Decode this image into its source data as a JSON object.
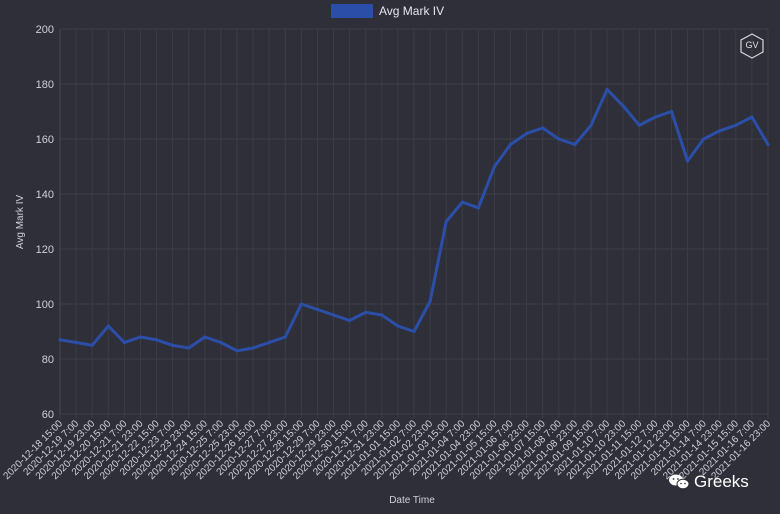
{
  "chart_data": {
    "type": "line",
    "legend": {
      "label": "Avg Mark IV",
      "position": "top-center"
    },
    "xlabel": "Date Time",
    "ylabel": "Avg Mark IV",
    "ylim": [
      60,
      200
    ],
    "yticks": [
      60,
      80,
      100,
      120,
      140,
      160,
      180,
      200
    ],
    "grid": true,
    "series_color": "#2b4fa8",
    "x": [
      "2020-12-18 15:00",
      "2020-12-19 7:00",
      "2020-12-19 23:00",
      "2020-12-20 15:00",
      "2020-12-21 7:00",
      "2020-12-21 23:00",
      "2020-12-22 15:00",
      "2020-12-23 7:00",
      "2020-12-23 23:00",
      "2020-12-24 15:00",
      "2020-12-25 7:00",
      "2020-12-25 23:00",
      "2020-12-26 15:00",
      "2020-12-27 7:00",
      "2020-12-27 23:00",
      "2020-12-28 15:00",
      "2020-12-29 7:00",
      "2020-12-29 23:00",
      "2020-12-30 15:00",
      "2020-12-31 7:00",
      "2020-12-31 23:00",
      "2021-01-01 15:00",
      "2021-01-02 7:00",
      "2021-01-02 23:00",
      "2021-01-03 15:00",
      "2021-01-04 7:00",
      "2021-01-04 23:00",
      "2021-01-05 15:00",
      "2021-01-06 7:00",
      "2021-01-06 23:00",
      "2021-01-07 15:00",
      "2021-01-08 7:00",
      "2021-01-08 23:00",
      "2021-01-09 15:00",
      "2021-01-10 7:00",
      "2021-01-10 23:00",
      "2021-01-11 15:00",
      "2021-01-12 7:00",
      "2021-01-12 23:00",
      "2021-01-13 15:00",
      "2021-01-14 7:00",
      "2021-01-14 23:00",
      "2021-01-15 15:00",
      "2021-01-16 7:00",
      "2021-01-16 23:00"
    ],
    "values": [
      87,
      86,
      85,
      92,
      86,
      88,
      87,
      85,
      84,
      88,
      86,
      83,
      84,
      86,
      88,
      100,
      98,
      96,
      94,
      97,
      96,
      92,
      90,
      101,
      130,
      137,
      135,
      150,
      158,
      162,
      164,
      160,
      158,
      165,
      178,
      172,
      165,
      168,
      170,
      152,
      160,
      163,
      165,
      168,
      158
    ]
  },
  "watermark": {
    "text": "Greeks",
    "icon": "wechat-icon"
  },
  "badge": {
    "text": "GV",
    "icon": "hexagon-logo-icon"
  }
}
